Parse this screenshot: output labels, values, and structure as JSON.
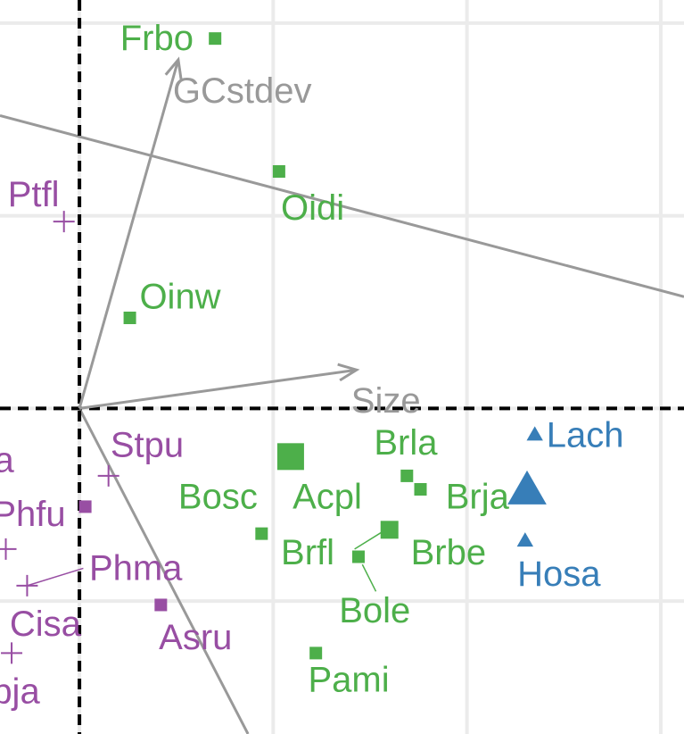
{
  "chart_data": {
    "type": "scatter",
    "title": "",
    "xlabel": "",
    "ylabel": "",
    "xlim": [
      -0.41,
      3.12
    ],
    "ylim": [
      -1.69,
      2.12
    ],
    "grid": true,
    "grid_x": [
      0.0,
      1.0,
      2.0,
      3.0
    ],
    "grid_y": [
      -1.0,
      0.0,
      1.0,
      2.0
    ],
    "colors": {
      "green": "#4daf4a",
      "purple": "#984ea3",
      "blue": "#377eb8",
      "arrow": "#999999",
      "grid": "#ebebeb",
      "zero_line": "#000000"
    },
    "vectors": [
      {
        "label": "GCstdev",
        "x": 0.51,
        "y": 1.81
      },
      {
        "label": "Size",
        "x": 1.43,
        "y": 0.2
      }
    ],
    "axis_lines": [
      {
        "x0": -0.41,
        "y0": 1.52,
        "x1": 3.12,
        "y1": 0.58
      },
      {
        "x0": 0.0,
        "y0": 0.0,
        "x1": 0.87,
        "y1": -1.69
      }
    ],
    "points": [
      {
        "label": "Frbo",
        "x": 0.7,
        "y": 1.92,
        "shape": "square",
        "color": "green",
        "size": 1
      },
      {
        "label": "Oidi",
        "x": 1.03,
        "y": 1.23,
        "shape": "square",
        "color": "green",
        "size": 1
      },
      {
        "label": "Oinw",
        "x": 0.26,
        "y": 0.47,
        "shape": "square",
        "color": "green",
        "size": 1
      },
      {
        "label": "Acpl",
        "x": 1.09,
        "y": -0.25,
        "shape": "square",
        "color": "green",
        "size": 3
      },
      {
        "label": "Bosc",
        "x": 0.94,
        "y": -0.65,
        "shape": "square",
        "color": "green",
        "size": 1
      },
      {
        "label": "Brla",
        "x": 1.69,
        "y": -0.35,
        "shape": "square",
        "color": "green",
        "size": 1
      },
      {
        "label": "Brja",
        "x": 1.76,
        "y": -0.42,
        "shape": "square",
        "color": "green",
        "size": 1
      },
      {
        "label": "Brbe",
        "x": 1.6,
        "y": -0.63,
        "shape": "square",
        "color": "green",
        "size": 2
      },
      {
        "label": "Brfl",
        "x": 1.44,
        "y": -0.77,
        "shape": "square",
        "color": "green",
        "size": 1
      },
      {
        "label": "Bole",
        "x": 1.44,
        "y": -0.77,
        "shape": "none",
        "color": "green",
        "size": 1
      },
      {
        "label": "Pami",
        "x": 1.22,
        "y": -1.27,
        "shape": "square",
        "color": "green",
        "size": 1
      },
      {
        "label": "Lach",
        "x": 2.35,
        "y": -0.13,
        "shape": "triangle",
        "color": "blue",
        "size": 1
      },
      {
        "label": "Hosa",
        "x": 2.3,
        "y": -0.68,
        "shape": "triangle",
        "color": "blue",
        "size": 1
      },
      {
        "label": "",
        "x": 2.31,
        "y": -0.41,
        "shape": "triangle",
        "color": "blue",
        "size": 3
      },
      {
        "label": "Ptfl",
        "x": -0.08,
        "y": 0.97,
        "shape": "plus",
        "color": "purple",
        "size": 1
      },
      {
        "label": "Stpu",
        "x": 0.15,
        "y": -0.35,
        "shape": "plus",
        "color": "purple",
        "size": 1
      },
      {
        "label": "Phfu",
        "x": 0.03,
        "y": -0.51,
        "shape": "square",
        "color": "purple",
        "size": 1
      },
      {
        "label": "",
        "x": -0.38,
        "y": -0.73,
        "shape": "plus",
        "color": "purple",
        "size": 1
      },
      {
        "label": "Phma",
        "x": -0.27,
        "y": -0.92,
        "shape": "plus",
        "color": "purple",
        "size": 1
      },
      {
        "label": "Asru",
        "x": 0.42,
        "y": -1.02,
        "shape": "square",
        "color": "purple",
        "size": 1
      },
      {
        "label": "",
        "x": -0.35,
        "y": -1.27,
        "shape": "plus",
        "color": "purple",
        "size": 1
      }
    ],
    "labels": [
      {
        "text": "Frbo",
        "x": 0.21,
        "y": 1.92,
        "color": "green"
      },
      {
        "text": "Oidi",
        "x": 1.04,
        "y": 1.04,
        "color": "green"
      },
      {
        "text": "Oinw",
        "x": 0.31,
        "y": 0.58,
        "color": "green"
      },
      {
        "text": "Acpl",
        "x": 1.1,
        "y": -0.46,
        "color": "green"
      },
      {
        "text": "Bosc",
        "x": 0.51,
        "y": -0.46,
        "color": "green"
      },
      {
        "text": "Brla",
        "x": 1.52,
        "y": -0.18,
        "color": "green"
      },
      {
        "text": "Brja",
        "x": 1.89,
        "y": -0.46,
        "color": "green"
      },
      {
        "text": "Brbe",
        "x": 1.71,
        "y": -0.75,
        "color": "green"
      },
      {
        "text": "Brfl",
        "x": 1.04,
        "y": -0.75,
        "color": "green"
      },
      {
        "text": "Bole",
        "x": 1.34,
        "y": -1.05,
        "color": "green"
      },
      {
        "text": "Pami",
        "x": 1.18,
        "y": -1.41,
        "color": "green"
      },
      {
        "text": "Lach",
        "x": 2.41,
        "y": -0.14,
        "color": "blue"
      },
      {
        "text": "Hosa",
        "x": 2.26,
        "y": -0.86,
        "color": "blue"
      },
      {
        "text": "Ptfl",
        "x": -0.37,
        "y": 1.11,
        "color": "purple"
      },
      {
        "text": "Stpu",
        "x": 0.16,
        "y": -0.19,
        "color": "purple"
      },
      {
        "text": "Phfu",
        "x": -0.45,
        "y": -0.55,
        "color": "purple"
      },
      {
        "text": "Phma",
        "x": 0.05,
        "y": -0.83,
        "color": "purple"
      },
      {
        "text": "Asru",
        "x": 0.41,
        "y": -1.19,
        "color": "purple"
      },
      {
        "text": "Cisa",
        "x": -0.36,
        "y": -1.12,
        "color": "purple"
      },
      {
        "text": "a",
        "x": -0.44,
        "y": -0.27,
        "color": "purple"
      },
      {
        "text": "pja",
        "x": -0.45,
        "y": -1.47,
        "color": "purple"
      }
    ],
    "segments": [
      {
        "x0": 1.42,
        "y0": -0.73,
        "x1": 1.58,
        "y1": -0.63,
        "color": "green"
      },
      {
        "x0": 1.46,
        "y0": -0.81,
        "x1": 1.53,
        "y1": -0.95,
        "color": "green"
      },
      {
        "x0": -0.27,
        "y0": -0.92,
        "x1": 0.02,
        "y1": -0.83,
        "color": "purple"
      }
    ]
  }
}
